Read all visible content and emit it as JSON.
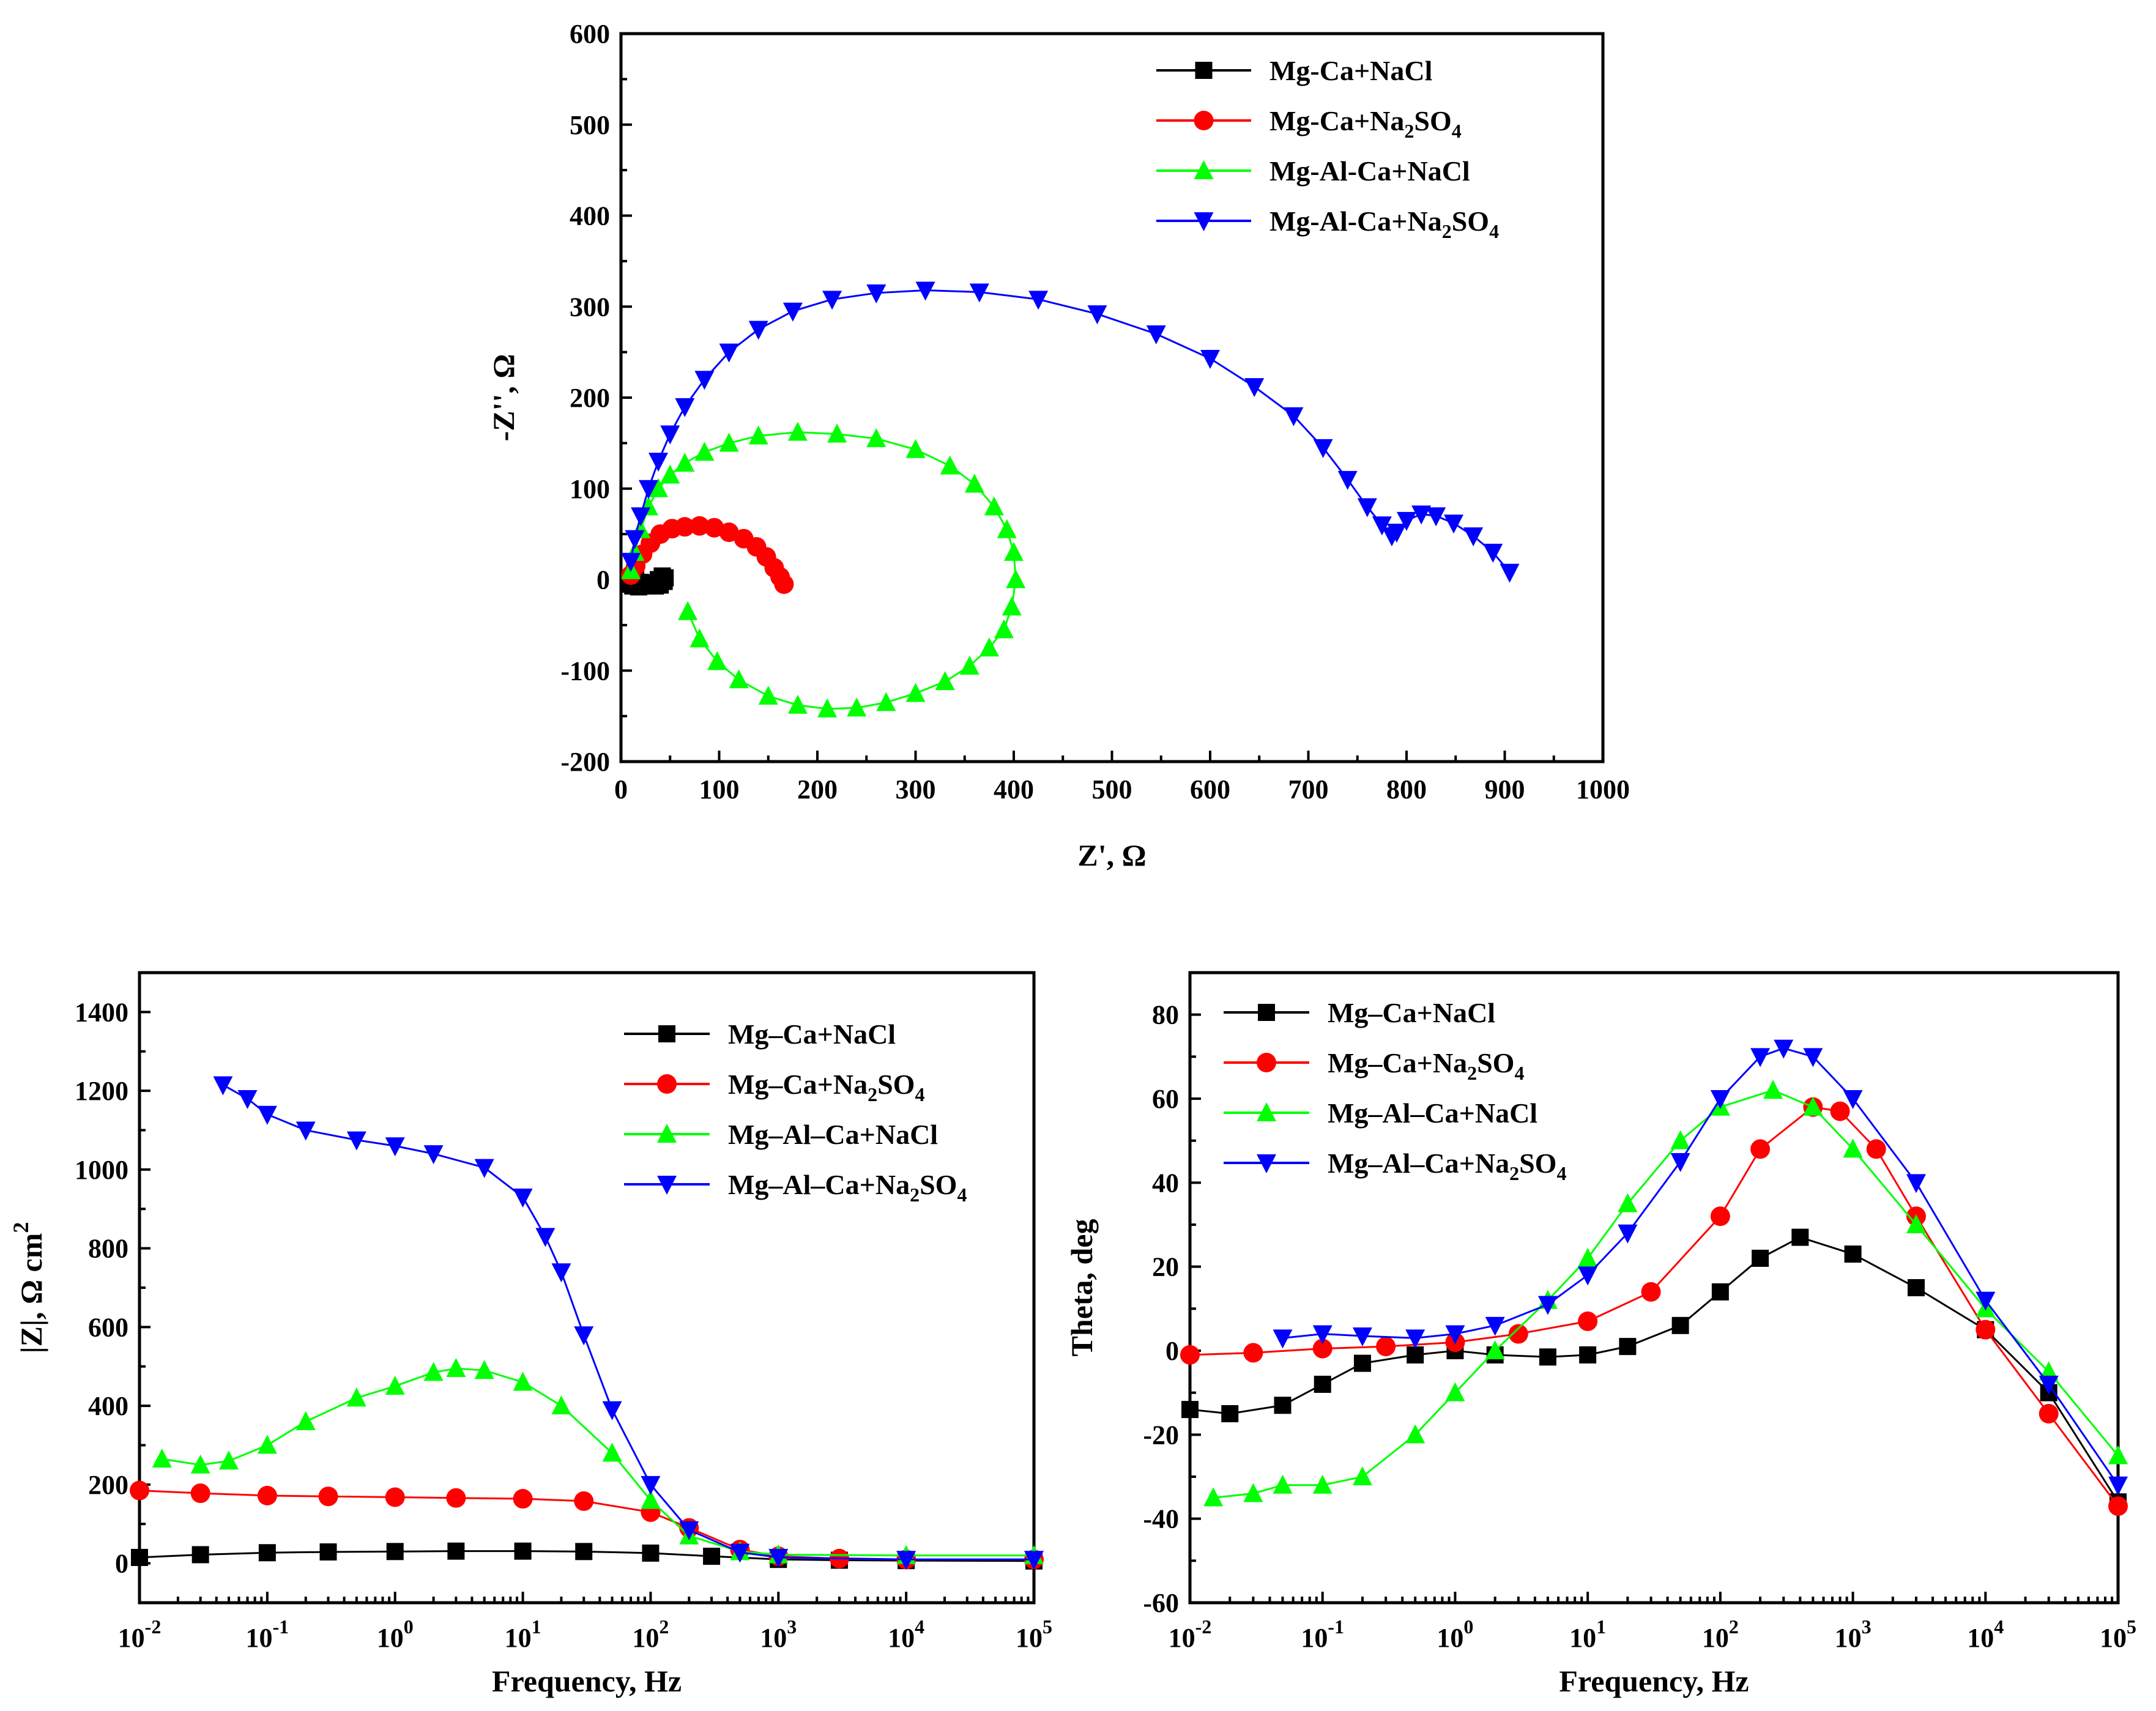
{
  "colors": {
    "Mg-Ca+NaCl": "#000000",
    "Mg-Ca+Na2SO4": "#ff0000",
    "Mg-Al-Ca+NaCl": "#00ff00",
    "Mg-Al-Ca+Na2SO4": "#0000ff"
  },
  "chart_data": [
    {
      "id": "nyquist",
      "type": "scatter",
      "title": "",
      "xlabel": "Z', Ω",
      "ylabel": "-Z'', Ω",
      "xlim": [
        0,
        1000
      ],
      "ylim": [
        -200,
        600
      ],
      "xticks": [
        "0",
        "100",
        "200",
        "300",
        "400",
        "500",
        "600",
        "700",
        "800",
        "900",
        "1000"
      ],
      "yticks": [
        "-200",
        "-100",
        "0",
        "100",
        "200",
        "300",
        "400",
        "500",
        "600"
      ],
      "legend_position": "top-right",
      "series": [
        {
          "name": "Mg-Ca+NaCl",
          "legend_label": [
            "Mg-Ca+NaCl"
          ],
          "marker": "square",
          "x": [
            8,
            12,
            18,
            25,
            32,
            38,
            42,
            45,
            44,
            40,
            35,
            30,
            25,
            20,
            15
          ],
          "y": [
            -5,
            -7,
            -8,
            -7,
            -4,
            0,
            4,
            2,
            -2,
            -6,
            -7,
            -6,
            -5,
            -3,
            0
          ]
        },
        {
          "name": "Mg-Ca+Na2SO4",
          "legend_label": [
            "Mg-Ca+Na",
            "2",
            "SO",
            "4"
          ],
          "marker": "circle",
          "x": [
            10,
            15,
            22,
            30,
            40,
            52,
            65,
            80,
            95,
            110,
            125,
            138,
            148,
            156,
            162,
            166
          ],
          "y": [
            5,
            15,
            28,
            40,
            50,
            56,
            58,
            59,
            57,
            52,
            45,
            36,
            25,
            13,
            3,
            -5
          ]
        },
        {
          "name": "Mg-Al-Ca+NaCl",
          "legend_label": [
            "Mg-Al-Ca+NaCl"
          ],
          "marker": "triangle-up",
          "x": [
            10,
            14,
            20,
            28,
            38,
            50,
            65,
            85,
            110,
            140,
            180,
            220,
            260,
            300,
            335,
            360,
            380,
            393,
            400,
            402,
            398,
            390,
            375,
            355,
            330,
            300,
            270,
            240,
            210,
            180,
            150,
            120,
            98,
            80,
            68
          ],
          "y": [
            10,
            30,
            55,
            80,
            100,
            115,
            128,
            140,
            150,
            158,
            162,
            160,
            155,
            143,
            125,
            105,
            80,
            55,
            30,
            0,
            -30,
            -55,
            -75,
            -95,
            -112,
            -125,
            -135,
            -141,
            -142,
            -138,
            -128,
            -110,
            -90,
            -65,
            -35
          ]
        },
        {
          "name": "Mg-Al-Ca+Na2SO4",
          "legend_label": [
            "Mg-Al-Ca+Na",
            "2",
            "SO",
            "4"
          ],
          "marker": "triangle-down",
          "x": [
            10,
            14,
            20,
            28,
            38,
            50,
            65,
            85,
            110,
            140,
            175,
            215,
            260,
            310,
            365,
            425,
            485,
            545,
            600,
            645,
            685,
            715,
            740,
            760,
            775,
            785,
            790,
            800,
            815,
            830,
            848,
            868,
            888,
            905
          ],
          "y": [
            20,
            45,
            70,
            100,
            130,
            160,
            190,
            220,
            250,
            275,
            295,
            308,
            315,
            318,
            316,
            308,
            292,
            270,
            243,
            212,
            180,
            145,
            110,
            80,
            60,
            48,
            52,
            65,
            72,
            70,
            62,
            48,
            30,
            8
          ]
        }
      ]
    },
    {
      "id": "bode-magnitude",
      "type": "scatter",
      "title": "",
      "xlabel": "Frequency, Hz",
      "ylabel": "|Z|, Ω cm",
      "ylabel_sup": "2",
      "xscale": "log",
      "xlim": [
        0.01,
        100000
      ],
      "ylim": [
        -100,
        1500
      ],
      "xticks": [
        {
          "base": "10",
          "exp": "-2"
        },
        {
          "base": "10",
          "exp": "-1"
        },
        {
          "base": "10",
          "exp": "0"
        },
        {
          "base": "10",
          "exp": "1"
        },
        {
          "base": "10",
          "exp": "2"
        },
        {
          "base": "10",
          "exp": "3"
        },
        {
          "base": "10",
          "exp": "4"
        },
        {
          "base": "10",
          "exp": "5"
        }
      ],
      "yticks": [
        "0",
        "200",
        "400",
        "600",
        "800",
        "1000",
        "1200",
        "1400"
      ],
      "legend_position": "top-right",
      "series": [
        {
          "name": "Mg–Ca+NaCl",
          "legend_label": [
            "Mg–Ca+NaCl"
          ],
          "marker": "square",
          "x": [
            0.01,
            0.03,
            0.1,
            0.3,
            1,
            3,
            10,
            30,
            100,
            300,
            1000,
            3000,
            10000,
            100000
          ],
          "y": [
            15,
            22,
            27,
            29,
            30,
            31,
            31,
            30,
            26,
            18,
            10,
            8,
            7,
            6
          ]
        },
        {
          "name": "Mg–Ca+Na2SO4",
          "legend_label": [
            "Mg–Ca+Na",
            "2",
            "SO",
            "4"
          ],
          "marker": "circle",
          "x": [
            0.01,
            0.03,
            0.1,
            0.3,
            1,
            3,
            10,
            30,
            100,
            200,
            500,
            1000,
            3000,
            10000,
            100000
          ],
          "y": [
            185,
            178,
            172,
            170,
            168,
            166,
            164,
            158,
            130,
            90,
            35,
            18,
            12,
            10,
            10
          ]
        },
        {
          "name": "Mg–Al–Ca+NaCl",
          "legend_label": [
            "Mg–Al–Ca+NaCl"
          ],
          "marker": "triangle-up",
          "x": [
            0.015,
            0.03,
            0.05,
            0.1,
            0.2,
            0.5,
            1,
            2,
            3,
            5,
            10,
            20,
            50,
            100,
            200,
            500,
            1000,
            10000,
            100000
          ],
          "y": [
            265,
            250,
            260,
            300,
            360,
            420,
            450,
            485,
            495,
            490,
            460,
            400,
            280,
            160,
            70,
            30,
            22,
            20,
            20
          ]
        },
        {
          "name": "Mg–Al–Ca+Na2SO4",
          "legend_label": [
            "Mg–Al–Ca+Na",
            "2",
            "SO",
            "4"
          ],
          "marker": "triangle-down",
          "x": [
            0.045,
            0.07,
            0.1,
            0.2,
            0.5,
            1,
            2,
            5,
            10,
            15,
            20,
            30,
            50,
            100,
            200,
            500,
            1000,
            10000,
            100000
          ],
          "y": [
            1215,
            1180,
            1140,
            1100,
            1075,
            1060,
            1040,
            1005,
            930,
            830,
            740,
            580,
            390,
            200,
            85,
            28,
            15,
            10,
            10
          ]
        }
      ]
    },
    {
      "id": "bode-phase",
      "type": "scatter",
      "title": "",
      "xlabel": "Frequency, Hz",
      "ylabel": "Theta, deg",
      "xscale": "log",
      "xlim": [
        0.01,
        100000
      ],
      "ylim": [
        -60,
        90
      ],
      "xticks": [
        {
          "base": "10",
          "exp": "-2"
        },
        {
          "base": "10",
          "exp": "-1"
        },
        {
          "base": "10",
          "exp": "0"
        },
        {
          "base": "10",
          "exp": "1"
        },
        {
          "base": "10",
          "exp": "2"
        },
        {
          "base": "10",
          "exp": "3"
        },
        {
          "base": "10",
          "exp": "4"
        },
        {
          "base": "10",
          "exp": "5"
        }
      ],
      "yticks": [
        "-60",
        "-40",
        "-20",
        "0",
        "20",
        "40",
        "60",
        "80"
      ],
      "legend_position": "top-left",
      "series": [
        {
          "name": "Mg–Ca+NaCl",
          "legend_label": [
            "Mg–Ca+NaCl"
          ],
          "marker": "square",
          "x": [
            0.01,
            0.02,
            0.05,
            0.1,
            0.2,
            0.5,
            1,
            2,
            5,
            10,
            20,
            50,
            100,
            200,
            400,
            1000,
            3000,
            10000,
            30000,
            100000
          ],
          "y": [
            -14,
            -15,
            -13,
            -8,
            -3,
            -1,
            0,
            -1,
            -1.5,
            -1,
            1,
            6,
            14,
            22,
            27,
            23,
            15,
            5,
            -10,
            -36
          ]
        },
        {
          "name": "Mg–Ca+Na2SO4",
          "legend_label": [
            "Mg–Ca+Na",
            "2",
            "SO",
            "4"
          ],
          "marker": "circle",
          "x": [
            0.01,
            0.03,
            0.1,
            0.3,
            1,
            3,
            10,
            30,
            100,
            200,
            500,
            800,
            1500,
            3000,
            10000,
            30000,
            100000
          ],
          "y": [
            -1,
            -0.5,
            0.5,
            1,
            2,
            4,
            7,
            14,
            32,
            48,
            58,
            57,
            48,
            32,
            5,
            -15,
            -37
          ]
        },
        {
          "name": "Mg–Al–Ca+NaCl",
          "legend_label": [
            "Mg–Al–Ca+NaCl"
          ],
          "marker": "triangle-up",
          "x": [
            0.015,
            0.03,
            0.05,
            0.1,
            0.2,
            0.5,
            1,
            2,
            5,
            10,
            20,
            50,
            100,
            250,
            500,
            1000,
            3000,
            10000,
            30000,
            100000
          ],
          "y": [
            -35,
            -34,
            -32,
            -32,
            -30,
            -20,
            -10,
            0,
            12,
            22,
            35,
            50,
            58,
            62,
            58,
            48,
            30,
            10,
            -5,
            -25
          ]
        },
        {
          "name": "Mg–Al–Ca+Na2SO4",
          "legend_label": [
            "Mg–Al–Ca+Na",
            "2",
            "SO",
            "4"
          ],
          "marker": "triangle-down",
          "x": [
            0.05,
            0.1,
            0.2,
            0.5,
            1,
            2,
            5,
            10,
            20,
            50,
            100,
            200,
            300,
            500,
            1000,
            3000,
            10000,
            30000,
            100000
          ],
          "y": [
            3,
            4,
            3.5,
            3,
            4,
            6,
            11,
            18,
            28,
            45,
            60,
            70,
            72,
            70,
            60,
            40,
            12,
            -8,
            -32
          ]
        }
      ]
    }
  ]
}
